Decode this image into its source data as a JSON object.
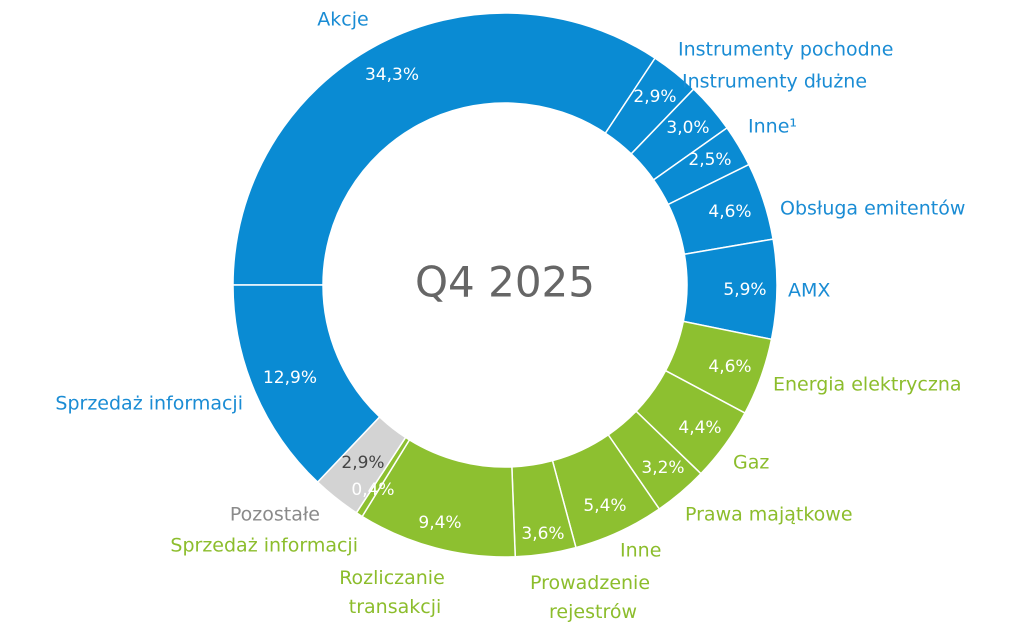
{
  "chart_data": {
    "type": "donut",
    "center_label": "Q4 2025",
    "categories": [
      "Akcje",
      "Instrumenty pochodne",
      "Instrumenty dłużne",
      "Inne¹",
      "Obsługa emitentów",
      "AMX",
      "Energia elektryczna",
      "Gaz",
      "Prawa majątkowe",
      "Inne",
      "Prowadzenie rejestrów",
      "Rozliczanie transakcji",
      "Sprzedaż informacji",
      "Pozostałe",
      "Sprzedaż informacji"
    ],
    "values": [
      34.3,
      2.9,
      3.0,
      2.5,
      4.6,
      5.9,
      4.6,
      4.4,
      3.2,
      5.4,
      3.6,
      9.4,
      0.4,
      2.9,
      12.9
    ],
    "value_labels": [
      "34,3%",
      "2,9%",
      "3,0%",
      "2,5%",
      "4,6%",
      "5,9%",
      "4,6%",
      "4,4%",
      "3,2%",
      "5,4%",
      "3,6%",
      "9,4%",
      "0,4%",
      "2,9%",
      "12,9%"
    ],
    "colors": [
      "#0a8bd3",
      "#0a8bd3",
      "#0a8bd3",
      "#0a8bd3",
      "#0a8bd3",
      "#0a8bd3",
      "#8dc030",
      "#8dc030",
      "#8dc030",
      "#8dc030",
      "#8dc030",
      "#8dc030",
      "#8dc030",
      "#d3d3d3",
      "#0a8bd3"
    ],
    "label_colors": [
      "#1a8cd4",
      "#1a8cd4",
      "#1a8cd4",
      "#1a8cd4",
      "#1a8cd4",
      "#1a8cd4",
      "#8cbd2c",
      "#8cbd2c",
      "#8cbd2c",
      "#8cbd2c",
      "#8cbd2c",
      "#8cbd2c",
      "#8cbd2c",
      "#8a8a8a",
      "#1a8cd4"
    ]
  }
}
